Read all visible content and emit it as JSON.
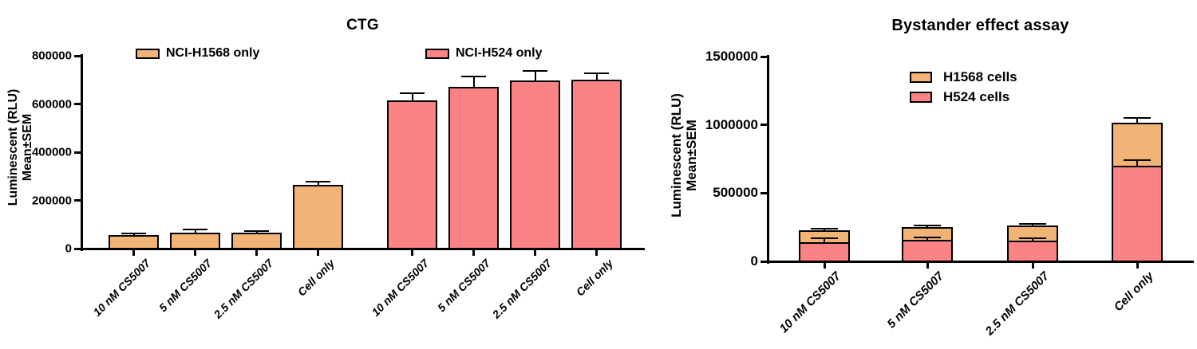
{
  "figure": {
    "background": "#FFFFFF"
  },
  "chart_data": [
    {
      "type": "bar",
      "title": "CTG",
      "ylabel_lines": [
        "Luminescent (RLU)",
        "Mean±SEM"
      ],
      "ylim": [
        0,
        800000
      ],
      "grid": false,
      "legend_position": "top-inside",
      "yticks": [
        {
          "label": "0",
          "value": 0
        },
        {
          "label": "200000",
          "value": 200000
        },
        {
          "label": "400000",
          "value": 400000
        },
        {
          "label": "600000",
          "value": 600000
        },
        {
          "label": "800000",
          "value": 800000
        }
      ],
      "categories": [
        "10 nM CS5007",
        "5 nM CS5007",
        "2.5 nM CS5007",
        "Cell only",
        "10 nM CS5007",
        "5 nM CS5007",
        "2.5 nM CS5007",
        "Cell only"
      ],
      "series": [
        {
          "name": "NCI-H1568 only",
          "color": "#F2B377",
          "slots": [
            0,
            1,
            2,
            3
          ],
          "values": [
            55000,
            66000,
            66000,
            266000
          ],
          "sem": [
            5000,
            10000,
            4000,
            8000
          ]
        },
        {
          "name": "NCI-H524 only",
          "color": "#FB8383",
          "slots": [
            4,
            5,
            6,
            7
          ],
          "values": [
            615000,
            672000,
            698000,
            700000
          ],
          "sem": [
            25000,
            40000,
            37000,
            24000
          ]
        }
      ]
    },
    {
      "type": "stacked-bar",
      "title": "Bystander effect assay",
      "ylabel_lines": [
        "Luminescent (RLU)",
        "Mean±SEM"
      ],
      "ylim": [
        0,
        1500000
      ],
      "grid": false,
      "legend_position": "top-inside",
      "yticks": [
        {
          "label": "0",
          "value": 0
        },
        {
          "label": "500000",
          "value": 500000
        },
        {
          "label": "1000000",
          "value": 1000000
        },
        {
          "label": "1500000",
          "value": 1500000
        }
      ],
      "categories": [
        "10 nM CS5007",
        "5 nM CS5007",
        "2.5 nM CS5007",
        "Cell only"
      ],
      "series": [
        {
          "name": "H1568 cells",
          "color": "#F2B377",
          "stack": "top",
          "values": [
            85000,
            95000,
            110000,
            319000
          ],
          "sem": [
            11000,
            9000,
            8000,
            28000
          ]
        },
        {
          "name": "H524 cells",
          "color": "#FB8383",
          "stack": "bottom",
          "values": [
            140000,
            155000,
            153000,
            698000
          ],
          "sem": [
            23000,
            13000,
            13000,
            40000
          ]
        }
      ]
    }
  ]
}
